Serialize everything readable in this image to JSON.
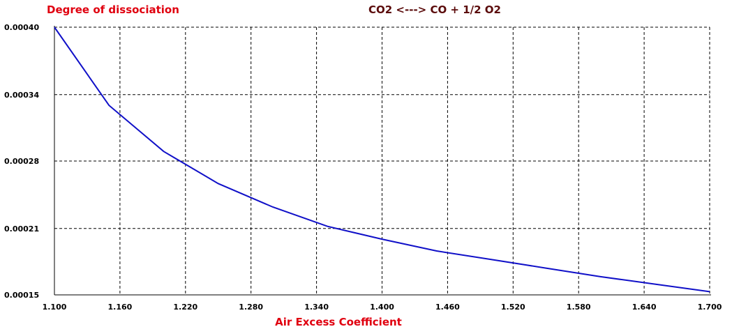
{
  "chart_data": {
    "type": "line",
    "title": "CO2 <---> CO + 1/2 O2",
    "xlabel": "Air Excess Coefficient",
    "ylabel": "Degree of dissociation",
    "xlim": [
      1.1,
      1.7
    ],
    "ylim": [
      0.00015,
      0.0004
    ],
    "x_ticks": [
      "1.100",
      "1.160",
      "1.220",
      "1.280",
      "1.340",
      "1.400",
      "1.460",
      "1.520",
      "1.580",
      "1.640",
      "1.700"
    ],
    "x_tick_values": [
      1.1,
      1.16,
      1.22,
      1.28,
      1.34,
      1.4,
      1.46,
      1.52,
      1.58,
      1.64,
      1.7
    ],
    "y_ticks": [
      "0.00015",
      "0.00021",
      "0.00028",
      "0.00034",
      "0.00040"
    ],
    "y_tick_values": [
      0.00015,
      0.000212,
      0.000275,
      0.000337,
      0.0004
    ],
    "grid": true,
    "legend": "none",
    "series": [
      {
        "color": "#1010c8",
        "x": [
          1.1,
          1.15,
          1.2,
          1.25,
          1.3,
          1.35,
          1.4,
          1.45,
          1.5,
          1.55,
          1.6,
          1.65,
          1.7
        ],
        "y": [
          0.0004,
          0.000327,
          0.000284,
          0.000254,
          0.000232,
          0.000214,
          0.000202,
          0.000191,
          0.000183,
          0.000175,
          0.000167,
          0.00016,
          0.000153
        ]
      }
    ]
  }
}
